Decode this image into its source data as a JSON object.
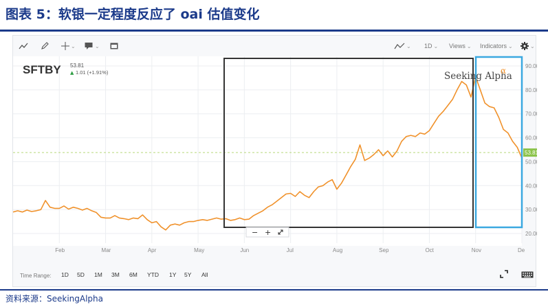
{
  "header": {
    "title": "图表 5：软银一定程度反应了 oai 估值变化"
  },
  "footer": {
    "source": "资料来源：SeekingAlpha"
  },
  "toolbar": {
    "views_label": "Views",
    "indicators_label": "Indicators",
    "interval_label": "1D"
  },
  "ticker": {
    "symbol": "SFTBY",
    "price": "53.81",
    "change": "1.01 (+1.91%)",
    "change_arrow": "▲"
  },
  "watermark": {
    "text": "Seeking Alpha",
    "symbol": "α"
  },
  "price_tag": "53.81",
  "zoom": {
    "minus": "−",
    "plus": "+"
  },
  "time_range": {
    "label": "Time Range:",
    "options": [
      "1D",
      "5D",
      "1M",
      "3M",
      "6M",
      "YTD",
      "1Y",
      "5Y",
      "All"
    ]
  },
  "colors": {
    "line": "#f0912a",
    "highlight_black": "#333333",
    "highlight_blue": "#3aa8e0",
    "change_up": "#2f9e44",
    "last_price_tag": "#8bc34a",
    "title_blue": "#1b3a8a"
  },
  "chart_data": {
    "type": "line",
    "title": "SFTBY",
    "xlabel": "",
    "ylabel": "",
    "ylim": [
      16,
      94
    ],
    "y_ticks": [
      20,
      30,
      40,
      50,
      60,
      70,
      80,
      90
    ],
    "y_tick_labels": [
      "20.00",
      "30.00",
      "40.00",
      "50.00",
      "60.00",
      "70.00",
      "80.00",
      "90.00"
    ],
    "x_tick_labels": [
      "Feb",
      "Mar",
      "Apr",
      "May",
      "Jun",
      "Jul",
      "Aug",
      "Sep",
      "Oct",
      "Nov",
      "De"
    ],
    "x_ticks": [
      1.0,
      2.0,
      3.0,
      4.0,
      5.0,
      6.0,
      7.0,
      8.0,
      9.0,
      10.0,
      11.0
    ],
    "last_price": 53.81,
    "grid": true,
    "series": [
      {
        "name": "SFTBY",
        "x": [
          0.0,
          0.1,
          0.2,
          0.3,
          0.4,
          0.5,
          0.6,
          0.7,
          0.8,
          0.9,
          1.0,
          1.1,
          1.2,
          1.3,
          1.4,
          1.5,
          1.6,
          1.7,
          1.8,
          1.9,
          2.0,
          2.1,
          2.2,
          2.3,
          2.4,
          2.5,
          2.6,
          2.7,
          2.8,
          2.9,
          3.0,
          3.1,
          3.2,
          3.3,
          3.4,
          3.5,
          3.6,
          3.7,
          3.8,
          3.9,
          4.0,
          4.1,
          4.2,
          4.3,
          4.4,
          4.5,
          4.6,
          4.7,
          4.8,
          4.9,
          5.0,
          5.1,
          5.2,
          5.3,
          5.4,
          5.5,
          5.6,
          5.7,
          5.8,
          5.9,
          6.0,
          6.1,
          6.2,
          6.3,
          6.4,
          6.5,
          6.6,
          6.7,
          6.8,
          6.9,
          7.0,
          7.1,
          7.2,
          7.3,
          7.4,
          7.5,
          7.6,
          7.7,
          7.8,
          7.9,
          8.0,
          8.1,
          8.2,
          8.3,
          8.4,
          8.5,
          8.6,
          8.7,
          8.8,
          8.9,
          9.0,
          9.1,
          9.2,
          9.3,
          9.4,
          9.5,
          9.6,
          9.7,
          9.8,
          9.9,
          10.0,
          10.1,
          10.2,
          10.3,
          10.4,
          10.5,
          10.6,
          10.7,
          10.8,
          10.9,
          11.0
        ],
        "values": [
          29,
          29.5,
          29.0,
          29.8,
          29.2,
          29.5,
          30.0,
          33.8,
          31.0,
          30.5,
          30.5,
          31.5,
          30.2,
          31.0,
          30.5,
          29.8,
          30.5,
          29.5,
          28.8,
          26.8,
          26.5,
          26.5,
          27.5,
          26.5,
          26.2,
          25.8,
          26.5,
          26.2,
          27.8,
          25.8,
          24.5,
          25.0,
          22.8,
          21.5,
          23.5,
          24.0,
          23.5,
          24.5,
          25.0,
          25.0,
          25.5,
          25.8,
          25.5,
          26.0,
          26.5,
          26.0,
          26.2,
          25.5,
          25.8,
          26.5,
          25.8,
          26.0,
          27.5,
          28.5,
          29.5,
          31.0,
          32.0,
          33.5,
          35.0,
          36.5,
          36.8,
          35.5,
          37.5,
          36.0,
          35.0,
          37.5,
          39.5,
          40.0,
          41.5,
          42.5,
          38.5,
          41.0,
          44.5,
          48.0,
          51.0,
          57.0,
          50.5,
          51.5,
          53.0,
          55.0,
          52.5,
          54.5,
          52.0,
          54.5,
          58.5,
          60.5,
          61.0,
          60.5,
          62.0,
          61.5,
          63.0,
          66.0,
          69.0,
          71.0,
          73.5,
          76.0,
          80.0,
          83.5,
          82.0,
          77.0,
          85.5,
          80.0,
          74.5,
          73.0,
          72.5,
          68.5,
          63.5,
          62.0,
          58.5,
          56.0,
          51.5
        ]
      }
    ]
  }
}
